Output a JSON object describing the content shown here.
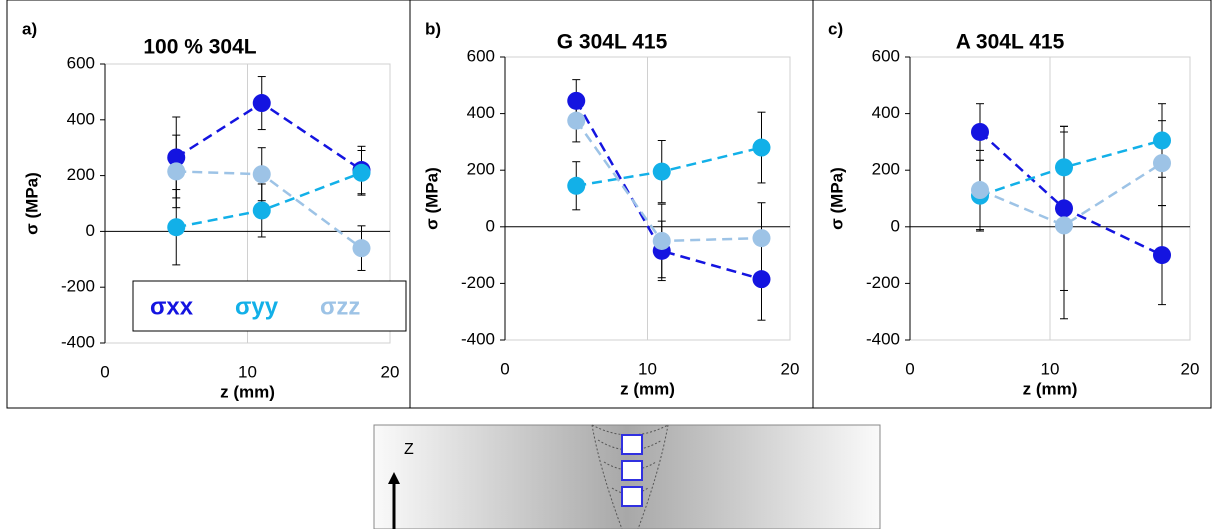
{
  "chart_data": [
    {
      "type": "line",
      "panel_label": "a)",
      "title": "100 % 304L",
      "x_label": "z (mm)",
      "y_label": "σ (MPa)",
      "xlim": [
        0,
        20
      ],
      "xticks": [
        0,
        10,
        20
      ],
      "ylim": [
        -400,
        600
      ],
      "yticks": [
        -400,
        -200,
        0,
        200,
        400,
        600
      ],
      "grid": true,
      "legend": "bottom",
      "x": [
        5,
        11,
        18
      ],
      "series": [
        {
          "name": "σxx",
          "color": "#1414e0",
          "values": [
            265,
            460,
            220
          ],
          "errors": [
            145,
            95,
            85
          ]
        },
        {
          "name": "σyy",
          "color": "#12b0e8",
          "values": [
            15,
            75,
            210
          ],
          "errors": [
            135,
            95,
            80
          ]
        },
        {
          "name": "σzz",
          "color": "#9dc3e6",
          "values": [
            215,
            205,
            -60
          ],
          "errors": [
            130,
            95,
            80
          ]
        }
      ]
    },
    {
      "type": "line",
      "panel_label": "b)",
      "title": "G 304L 415",
      "x_label": "z (mm)",
      "y_label": "σ (MPa)",
      "xlim": [
        0,
        20
      ],
      "xticks": [
        0,
        10,
        20
      ],
      "ylim": [
        -400,
        600
      ],
      "yticks": [
        -400,
        -200,
        0,
        200,
        400,
        600
      ],
      "grid": true,
      "x": [
        5,
        11,
        18
      ],
      "series": [
        {
          "name": "σxx",
          "color": "#1414e0",
          "values": [
            445,
            -85,
            -185
          ],
          "errors": [
            75,
            105,
            145
          ]
        },
        {
          "name": "σyy",
          "color": "#12b0e8",
          "values": [
            145,
            195,
            280
          ],
          "errors": [
            85,
            110,
            125
          ]
        },
        {
          "name": "σzz",
          "color": "#9dc3e6",
          "values": [
            375,
            -50,
            -40
          ],
          "errors": [
            75,
            130,
            125
          ]
        }
      ]
    },
    {
      "type": "line",
      "panel_label": "c)",
      "title": "A 304L 415",
      "x_label": "z (mm)",
      "y_label": "σ (MPa)",
      "xlim": [
        0,
        20
      ],
      "xticks": [
        0,
        10,
        20
      ],
      "ylim": [
        -400,
        600
      ],
      "yticks": [
        -400,
        -200,
        0,
        200,
        400,
        600
      ],
      "grid": true,
      "x": [
        5,
        11,
        18
      ],
      "series": [
        {
          "name": "σxx",
          "color": "#1414e0",
          "values": [
            335,
            65,
            -100
          ],
          "errors": [
            100,
            290,
            175
          ]
        },
        {
          "name": "σyy",
          "color": "#12b0e8",
          "values": [
            110,
            210,
            305
          ],
          "errors": [
            125,
            145,
            130
          ]
        },
        {
          "name": "σzz",
          "color": "#9dc3e6",
          "values": [
            130,
            5,
            225
          ],
          "errors": [
            140,
            330,
            150
          ]
        }
      ]
    }
  ],
  "diagram": {
    "axis_label": "Z"
  }
}
